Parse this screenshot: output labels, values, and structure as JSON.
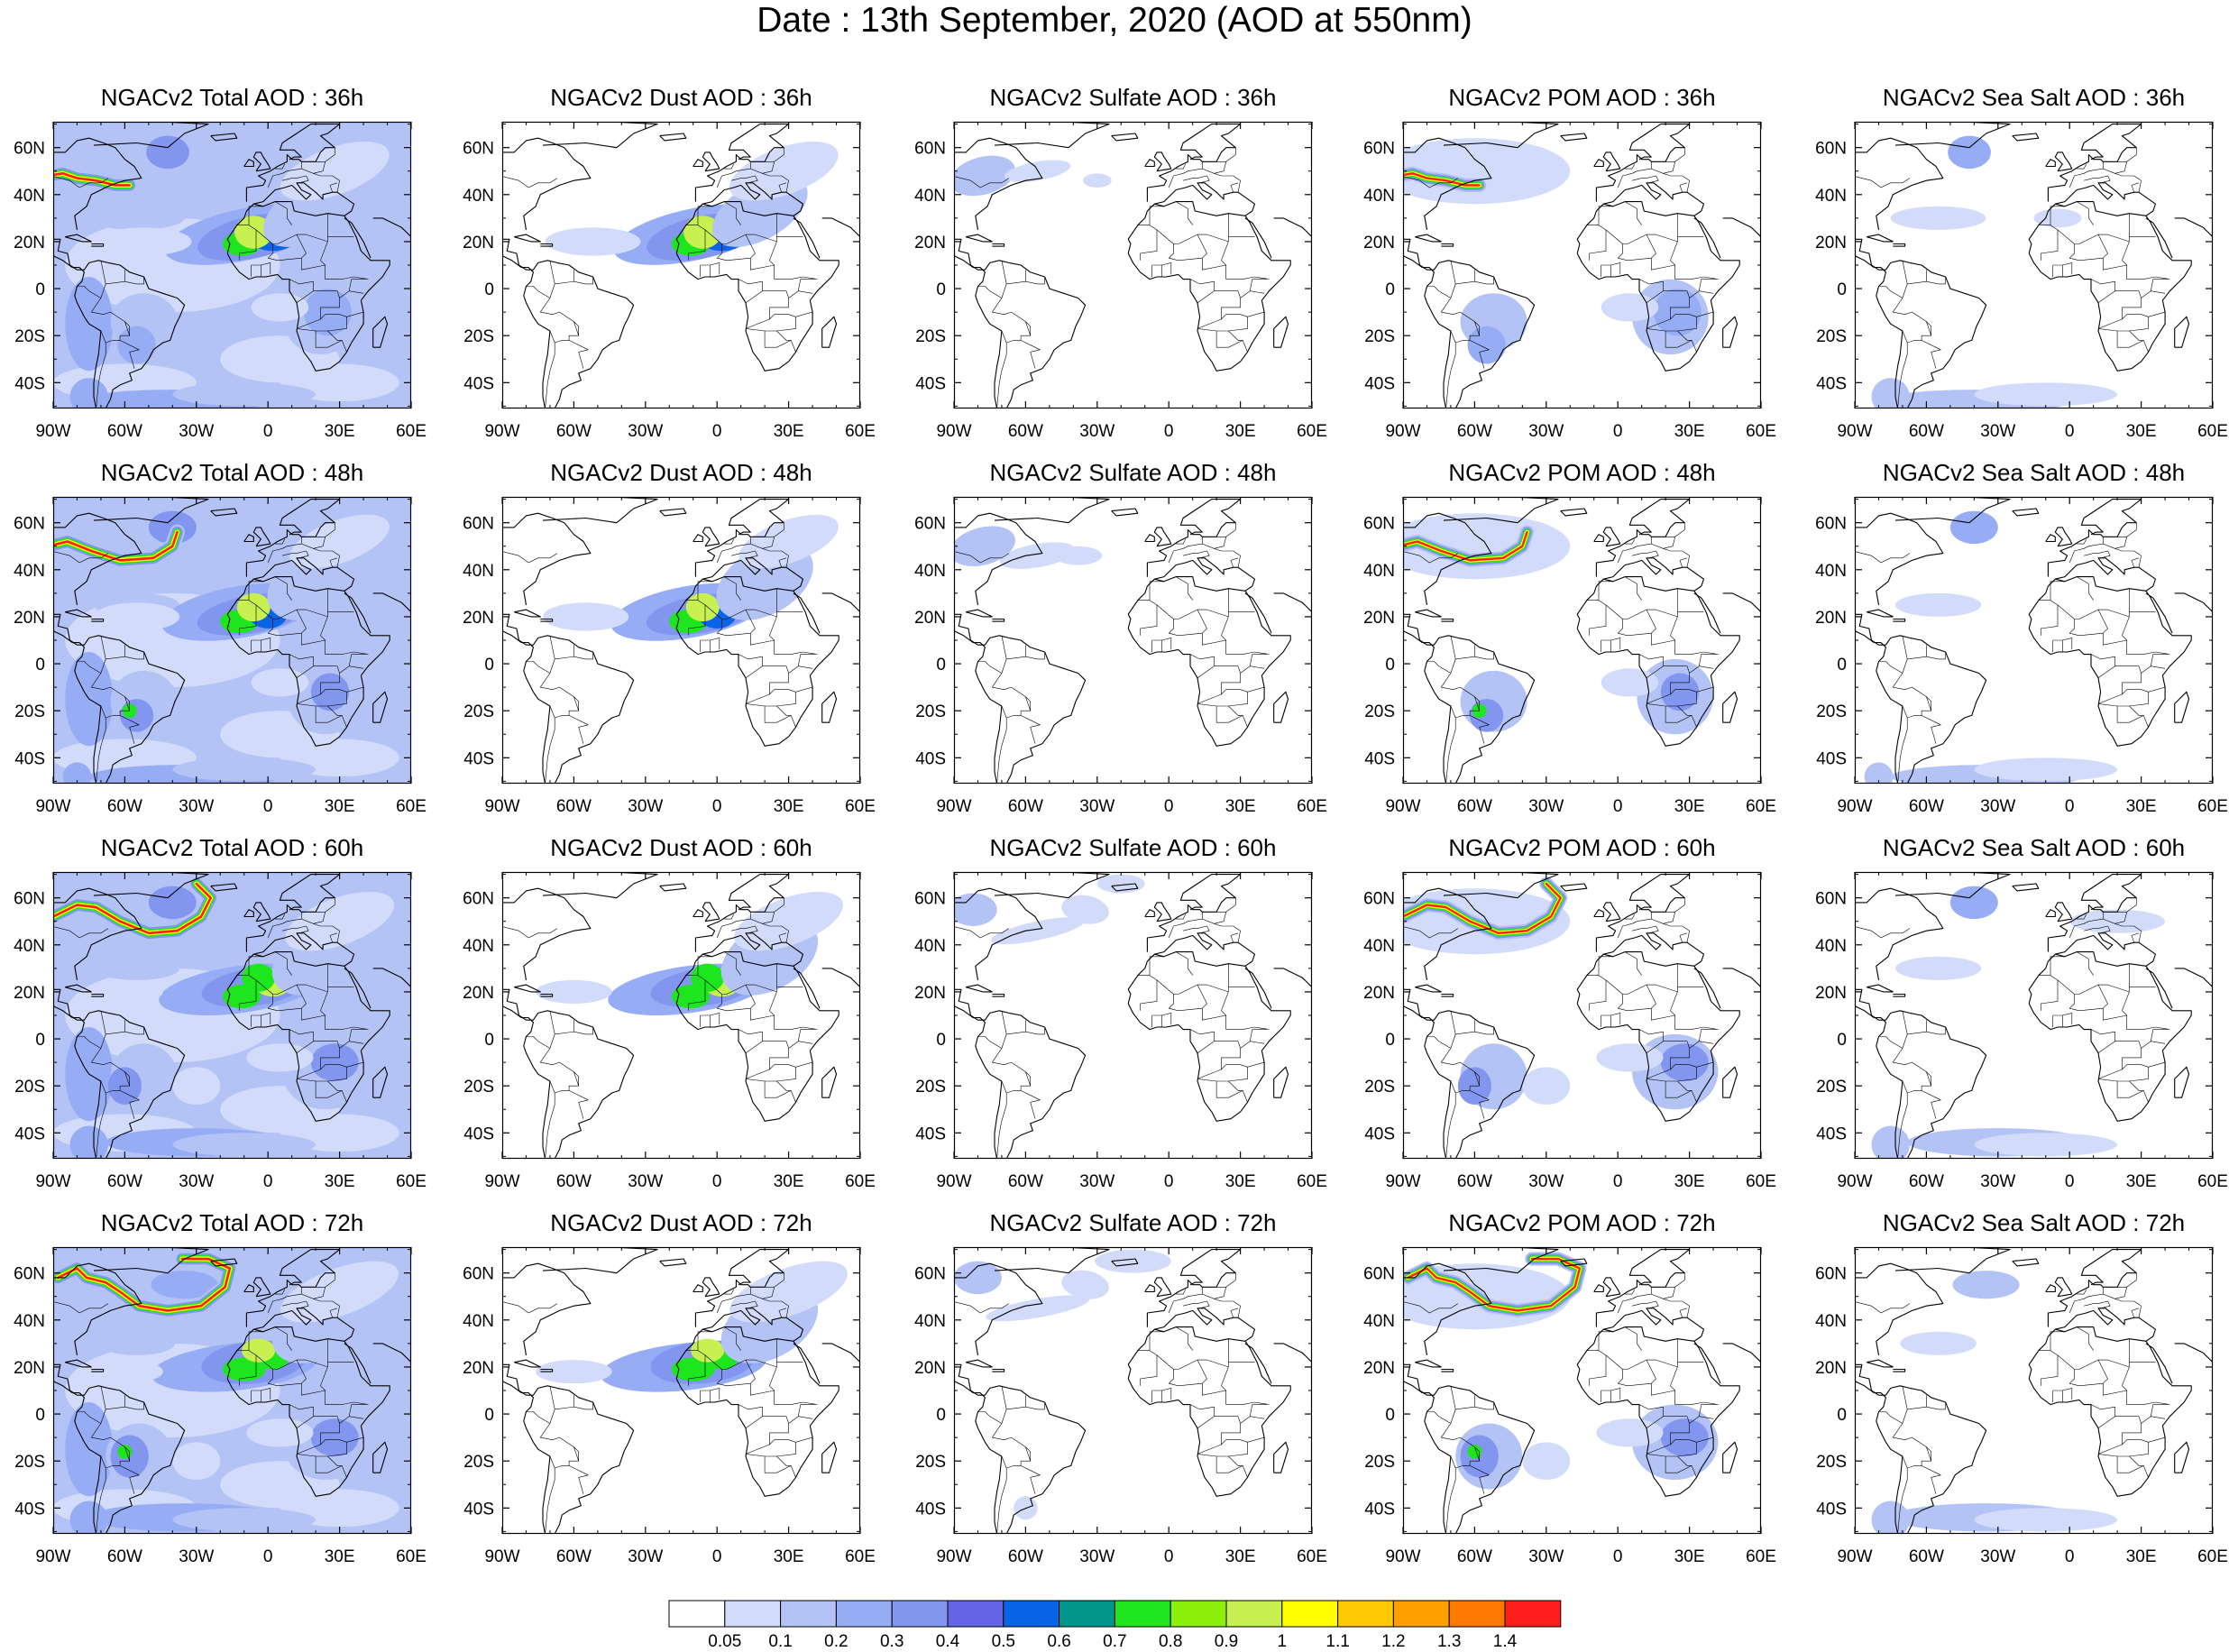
{
  "title": "Date : 13th September, 2020 (AOD at 550nm)",
  "lon_ticks": [
    "90W",
    "60W",
    "30W",
    "0",
    "30E",
    "60E"
  ],
  "lat_ticks": [
    "60N",
    "40N",
    "20N",
    "0",
    "20S",
    "40S"
  ],
  "panels": [
    [
      "NGACv2 Total AOD : 36h",
      "NGACv2 Dust AOD : 36h",
      "NGACv2 Sulfate AOD : 36h",
      "NGACv2 POM AOD : 36h",
      "NGACv2 Sea Salt AOD : 36h"
    ],
    [
      "NGACv2 Total AOD : 48h",
      "NGACv2 Dust AOD : 48h",
      "NGACv2 Sulfate AOD : 48h",
      "NGACv2 POM AOD : 48h",
      "NGACv2 Sea Salt AOD : 48h"
    ],
    [
      "NGACv2 Total AOD : 60h",
      "NGACv2 Dust AOD : 60h",
      "NGACv2 Sulfate AOD : 60h",
      "NGACv2 POM AOD : 60h",
      "NGACv2 Sea Salt AOD : 60h"
    ],
    [
      "NGACv2 Total AOD : 72h",
      "NGACv2 Dust AOD : 72h",
      "NGACv2 Sulfate AOD : 72h",
      "NGACv2 POM AOD : 72h",
      "NGACv2 Sea Salt  AOD : 72h"
    ]
  ],
  "colorbar": {
    "labels": [
      "0.05",
      "0.1",
      "0.2",
      "0.3",
      "0.4",
      "0.5",
      "0.6",
      "0.7",
      "0.8",
      "0.9",
      "1",
      "1.1",
      "1.2",
      "1.3",
      "1.4"
    ],
    "colors": [
      "#ffffff",
      "#d2dcfa",
      "#b4c3f5",
      "#96acf5",
      "#8296f0",
      "#6464e6",
      "#0a64e6",
      "#00968c",
      "#1ee61e",
      "#8cf00a",
      "#c8f050",
      "#ffff00",
      "#ffc800",
      "#ffa000",
      "#ff7800",
      "#ff1e1e"
    ]
  }
}
